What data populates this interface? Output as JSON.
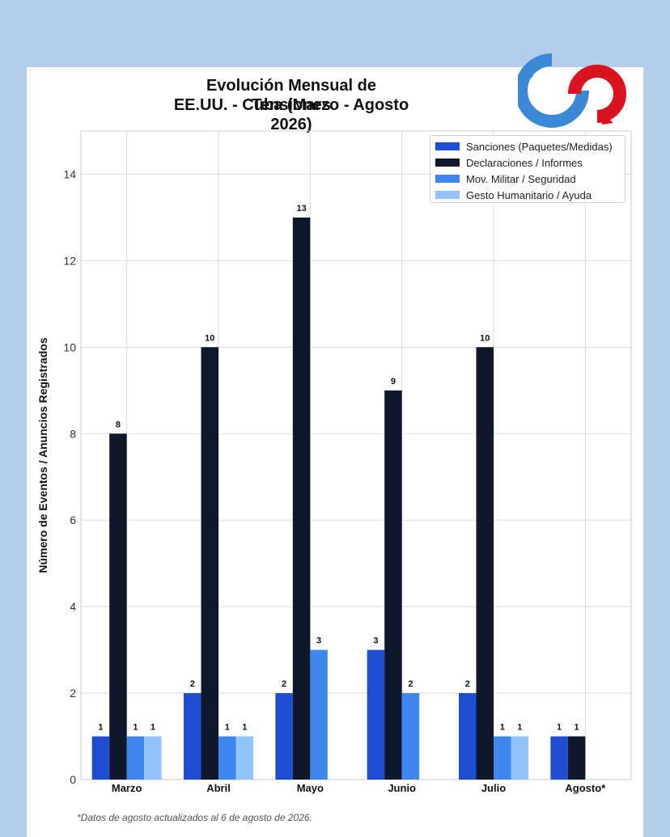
{
  "chart_data": {
    "type": "bar",
    "title": "Evolución Mensual de Tensiones",
    "subtitle": "EE.UU. - Cuba (Marzo - Agosto 2026)",
    "xlabel": "",
    "ylabel": "Número de Eventos / Anuncios Registrados",
    "ylim": [
      0,
      15
    ],
    "yticks": [
      0,
      2,
      4,
      6,
      8,
      10,
      12,
      14
    ],
    "grid": true,
    "legend_position": "top-right",
    "categories": [
      "Marzo",
      "Abril",
      "Mayo",
      "Junio",
      "Julio",
      "Agosto*"
    ],
    "series": [
      {
        "name": "Sanciones (Paquetes/Medidas)",
        "color": "#1f4fd0",
        "values": [
          1,
          2,
          2,
          3,
          2,
          1
        ]
      },
      {
        "name": "Declaraciones / Informes",
        "color": "#0f172a",
        "values": [
          8,
          10,
          13,
          9,
          10,
          1
        ]
      },
      {
        "name": "Mov. Militar / Seguridad",
        "color": "#3f86ef",
        "values": [
          1,
          1,
          3,
          2,
          1,
          0
        ]
      },
      {
        "name": "Gesto Humanitario / Ayuda",
        "color": "#92c3fb",
        "values": [
          1,
          1,
          0,
          0,
          1,
          0
        ]
      }
    ],
    "footnote": "*Datos de agosto actualizados al 6 de agosto de 2026."
  }
}
